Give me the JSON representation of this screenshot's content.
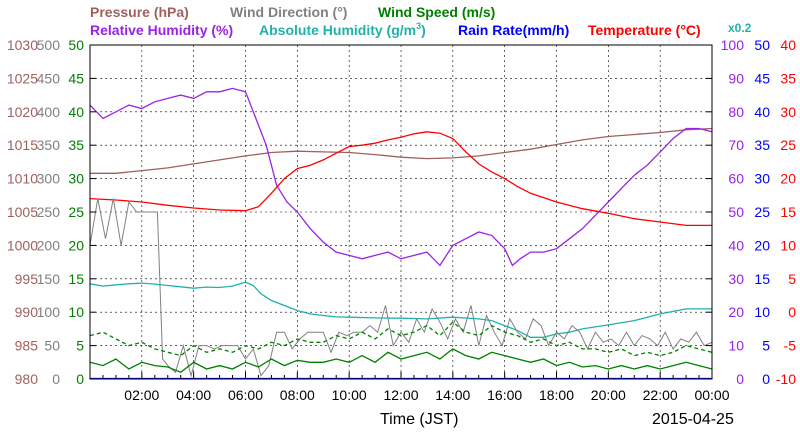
{
  "chart_data": {
    "type": "line",
    "date": "2015-04-25",
    "xlabel": "Time (JST)",
    "x_ticks": [
      "02:00",
      "04:00",
      "06:00",
      "08:00",
      "10:00",
      "12:00",
      "14:00",
      "16:00",
      "18:00",
      "20:00",
      "22:00",
      "00:00"
    ],
    "x_range_hours": [
      0,
      24
    ],
    "grid": true,
    "axes": {
      "pressure": {
        "label": "Pressure (hPa)",
        "color": "#a0605e",
        "range": [
          980,
          1030
        ],
        "ticks": [
          "980",
          "985",
          "990",
          "995",
          "1000",
          "1005",
          "1010",
          "1015",
          "1020",
          "1025",
          "1030"
        ]
      },
      "wind_direction": {
        "label": "Wind Direction (°)",
        "color": "#808080",
        "range": [
          0,
          500
        ],
        "ticks": [
          "0",
          "50",
          "100",
          "150",
          "200",
          "250",
          "300",
          "350",
          "400",
          "450",
          "500"
        ]
      },
      "wind_speed": {
        "label": "Wind Speed (m/s)",
        "color": "#008000",
        "range": [
          0,
          50
        ],
        "ticks": [
          "0",
          "5",
          "10",
          "15",
          "20",
          "25",
          "30",
          "35",
          "40",
          "45",
          "50"
        ]
      },
      "humidity": {
        "label": "Relative Humidity (%)",
        "color": "#9a22e6",
        "range": [
          0,
          100
        ],
        "ticks": [
          "0",
          "10",
          "20",
          "30",
          "40",
          "50",
          "60",
          "70",
          "80",
          "90",
          "100"
        ]
      },
      "abs_humidity": {
        "label": "Absolute Humidity (g/m",
        "sup": "3",
        "suffix": ")",
        "color": "#20b2aa",
        "multiplier": "x0.2"
      },
      "rain_rate": {
        "label": "Rain Rate(mm/h)",
        "color": "#0000ff",
        "range": [
          0,
          50
        ],
        "ticks": [
          "0",
          "5",
          "10",
          "15",
          "20",
          "25",
          "30",
          "35",
          "40",
          "45",
          "50"
        ]
      },
      "temperature": {
        "label": "Temperature (°C)",
        "color": "#ff0000",
        "range": [
          -10,
          40
        ],
        "ticks": [
          "-10",
          "-5",
          "0",
          "5",
          "10",
          "15",
          "20",
          "25",
          "30",
          "35",
          "40"
        ]
      }
    },
    "series": [
      {
        "name": "Pressure (hPa)",
        "color": "#a0605e",
        "x": [
          0,
          1,
          2,
          3,
          4,
          5,
          6,
          7,
          8,
          9,
          10,
          11,
          12,
          13,
          14,
          15,
          16,
          17,
          18,
          19,
          20,
          21,
          22,
          23,
          24
        ],
        "y": [
          1010.8,
          1010.8,
          1011.2,
          1011.6,
          1012.2,
          1012.8,
          1013.4,
          1013.9,
          1014.1,
          1014.0,
          1013.9,
          1013.6,
          1013.2,
          1013.0,
          1013.1,
          1013.4,
          1013.9,
          1014.4,
          1015.1,
          1015.8,
          1016.3,
          1016.6,
          1016.9,
          1017.3,
          1017.5
        ]
      },
      {
        "name": "Relative Humidity (%)",
        "color": "#9a22e6",
        "x": [
          0,
          0.5,
          1,
          1.5,
          2,
          2.5,
          3,
          3.5,
          4,
          4.5,
          5,
          5.5,
          6,
          6.3,
          6.8,
          7.2,
          7.6,
          8,
          8.5,
          9,
          9.5,
          10,
          10.5,
          11,
          11.5,
          12,
          12.5,
          13,
          13.5,
          14,
          14.5,
          15,
          15.5,
          16,
          16.3,
          16.6,
          17,
          17.5,
          18,
          18.5,
          19,
          19.5,
          20,
          20.5,
          21,
          21.5,
          22,
          22.5,
          23,
          23.5,
          24
        ],
        "y": [
          82,
          78,
          80,
          82,
          81,
          83,
          84,
          85,
          84,
          86,
          86,
          87,
          86,
          80,
          70,
          58,
          53,
          50,
          45,
          41,
          38,
          37,
          36,
          37,
          38,
          36,
          37,
          38,
          34,
          40,
          42,
          44,
          43,
          39,
          34,
          36,
          38,
          38,
          39,
          42,
          45,
          49,
          53,
          57,
          61,
          64,
          68,
          72,
          75,
          75,
          74
        ]
      },
      {
        "name": "Absolute Humidity (g/m3) x0.2",
        "color": "#20b2aa",
        "x": [
          0,
          0.5,
          1,
          1.5,
          2,
          2.5,
          3,
          3.5,
          4,
          4.5,
          5,
          5.5,
          6,
          6.3,
          6.6,
          7,
          7.5,
          8,
          8.5,
          9,
          9.5,
          10,
          11,
          12,
          13,
          14,
          15,
          15.5,
          16,
          16.5,
          17,
          17.5,
          18,
          18.5,
          19,
          20,
          21,
          22,
          23,
          24
        ],
        "y": [
          28.5,
          27.8,
          28.2,
          28.5,
          28.7,
          28.4,
          28.0,
          27.6,
          27.2,
          27.5,
          27.4,
          27.8,
          29.0,
          28.0,
          25.5,
          23.5,
          22.0,
          20.5,
          19.5,
          19.0,
          18.6,
          18.5,
          18.3,
          18.2,
          18.0,
          18.5,
          18.0,
          17.5,
          16.0,
          14.5,
          12.5,
          12.5,
          13.5,
          14.0,
          15.0,
          16.2,
          17.5,
          19.5,
          21.0,
          21.0
        ]
      },
      {
        "name": "Temperature (°C)",
        "color": "#ff0000",
        "x": [
          0,
          1,
          2,
          3,
          4,
          5,
          6,
          6.5,
          7,
          7.5,
          8,
          8.5,
          9,
          9.5,
          10,
          10.5,
          11,
          11.5,
          12,
          12.5,
          13,
          13.5,
          14,
          14.5,
          15,
          15.5,
          16,
          16.5,
          17,
          18,
          19,
          20,
          21,
          22,
          23,
          24
        ],
        "y": [
          17,
          16.8,
          16.5,
          16.0,
          15.6,
          15.3,
          15.2,
          15.8,
          17.8,
          20.0,
          21.5,
          22.0,
          22.8,
          23.8,
          24.8,
          25.0,
          25.3,
          25.8,
          26.2,
          26.7,
          27.0,
          26.8,
          26.0,
          24.0,
          22.2,
          21.0,
          20.0,
          18.8,
          17.8,
          16.5,
          15.5,
          14.8,
          14.0,
          13.5,
          13.0,
          13.0
        ]
      },
      {
        "name": "Wind Direction (°)",
        "color": "#808080",
        "x": [
          0,
          0.3,
          0.6,
          0.9,
          1.2,
          1.5,
          1.8,
          2.0,
          2.3,
          2.6,
          2.8,
          3.0,
          3.3,
          3.6,
          3.9,
          4.2,
          4.5,
          4.8,
          5.1,
          5.4,
          5.7,
          6.0,
          6.3,
          6.6,
          6.9,
          7.2,
          7.5,
          7.8,
          8.1,
          8.4,
          8.7,
          9.0,
          9.3,
          9.6,
          9.9,
          10.2,
          10.5,
          10.8,
          11.1,
          11.4,
          11.7,
          12.0,
          12.3,
          12.6,
          12.9,
          13.2,
          13.5,
          13.8,
          14.1,
          14.4,
          14.7,
          15.0,
          15.3,
          15.6,
          15.9,
          16.2,
          16.5,
          16.8,
          17.1,
          17.4,
          17.7,
          18.0,
          18.3,
          18.6,
          18.9,
          19.2,
          19.5,
          19.8,
          20.1,
          20.4,
          20.7,
          21.0,
          21.3,
          21.6,
          21.9,
          22.2,
          22.5,
          22.8,
          23.1,
          23.4,
          23.7,
          24
        ],
        "y": [
          200,
          270,
          210,
          270,
          200,
          265,
          250,
          250,
          250,
          250,
          30,
          20,
          10,
          50,
          5,
          50,
          50,
          45,
          50,
          50,
          50,
          30,
          45,
          5,
          20,
          70,
          70,
          45,
          60,
          70,
          70,
          70,
          40,
          70,
          65,
          70,
          70,
          80,
          70,
          110,
          50,
          70,
          55,
          90,
          70,
          105,
          85,
          60,
          90,
          70,
          110,
          50,
          95,
          70,
          50,
          90,
          70,
          60,
          90,
          80,
          50,
          70,
          60,
          80,
          70,
          45,
          70,
          55,
          60,
          50,
          70,
          50,
          65,
          60,
          50,
          70,
          45,
          60,
          55,
          70,
          50,
          55
        ]
      },
      {
        "name": "Wind Speed (m/s)",
        "color": "#008000",
        "x": [
          0,
          0.5,
          1,
          1.5,
          2,
          2.5,
          3,
          3.5,
          4,
          4.5,
          5,
          5.5,
          6,
          6.5,
          7,
          7.5,
          8,
          8.5,
          9,
          9.5,
          10,
          10.5,
          11,
          11.5,
          12,
          12.5,
          13,
          13.5,
          14,
          14.5,
          15,
          15.5,
          16,
          16.5,
          17,
          17.5,
          18,
          18.5,
          19,
          19.5,
          20,
          20.5,
          21,
          21.5,
          22,
          22.5,
          23,
          23.5,
          24
        ],
        "y": [
          2.5,
          2.0,
          3.0,
          1.5,
          2.5,
          2.0,
          1.8,
          1.0,
          2.5,
          1.5,
          2.0,
          1.5,
          2.5,
          1.8,
          3.0,
          2.0,
          2.8,
          2.5,
          2.5,
          3.0,
          2.5,
          3.5,
          2.5,
          4.0,
          3.0,
          3.5,
          4.0,
          3.0,
          4.5,
          3.5,
          3.0,
          4.0,
          3.5,
          3.0,
          2.5,
          3.0,
          2.0,
          2.5,
          1.8,
          2.0,
          1.5,
          2.0,
          1.5,
          2.0,
          1.5,
          2.0,
          2.5,
          2.0,
          1.5
        ]
      },
      {
        "name": "Wind Speed Max (m/s)",
        "color": "#008000",
        "x": [
          0,
          0.5,
          1,
          1.5,
          2,
          2.5,
          3,
          3.5,
          4,
          4.5,
          5,
          5.5,
          6,
          6.5,
          7,
          7.5,
          8,
          8.5,
          9,
          9.5,
          10,
          10.5,
          11,
          11.5,
          12,
          12.5,
          13,
          13.5,
          14,
          14.5,
          15,
          15.5,
          16,
          16.5,
          17,
          17.5,
          18,
          18.5,
          19,
          19.5,
          20,
          20.5,
          21,
          21.5,
          22,
          22.5,
          23,
          23.5,
          24
        ],
        "y": [
          6.5,
          7.0,
          6.0,
          5.0,
          5.5,
          4.5,
          4.0,
          3.5,
          5.0,
          4.0,
          4.5,
          4.0,
          5.0,
          4.5,
          5.5,
          5.0,
          6.0,
          5.5,
          5.5,
          6.5,
          6.0,
          7.0,
          6.0,
          7.5,
          6.5,
          7.0,
          8.0,
          6.5,
          8.5,
          7.0,
          6.5,
          8.0,
          7.0,
          6.5,
          5.5,
          6.0,
          5.0,
          5.5,
          4.5,
          4.5,
          4.0,
          4.5,
          3.5,
          4.0,
          3.5,
          4.0,
          5.0,
          4.5,
          4.0
        ]
      }
    ]
  }
}
